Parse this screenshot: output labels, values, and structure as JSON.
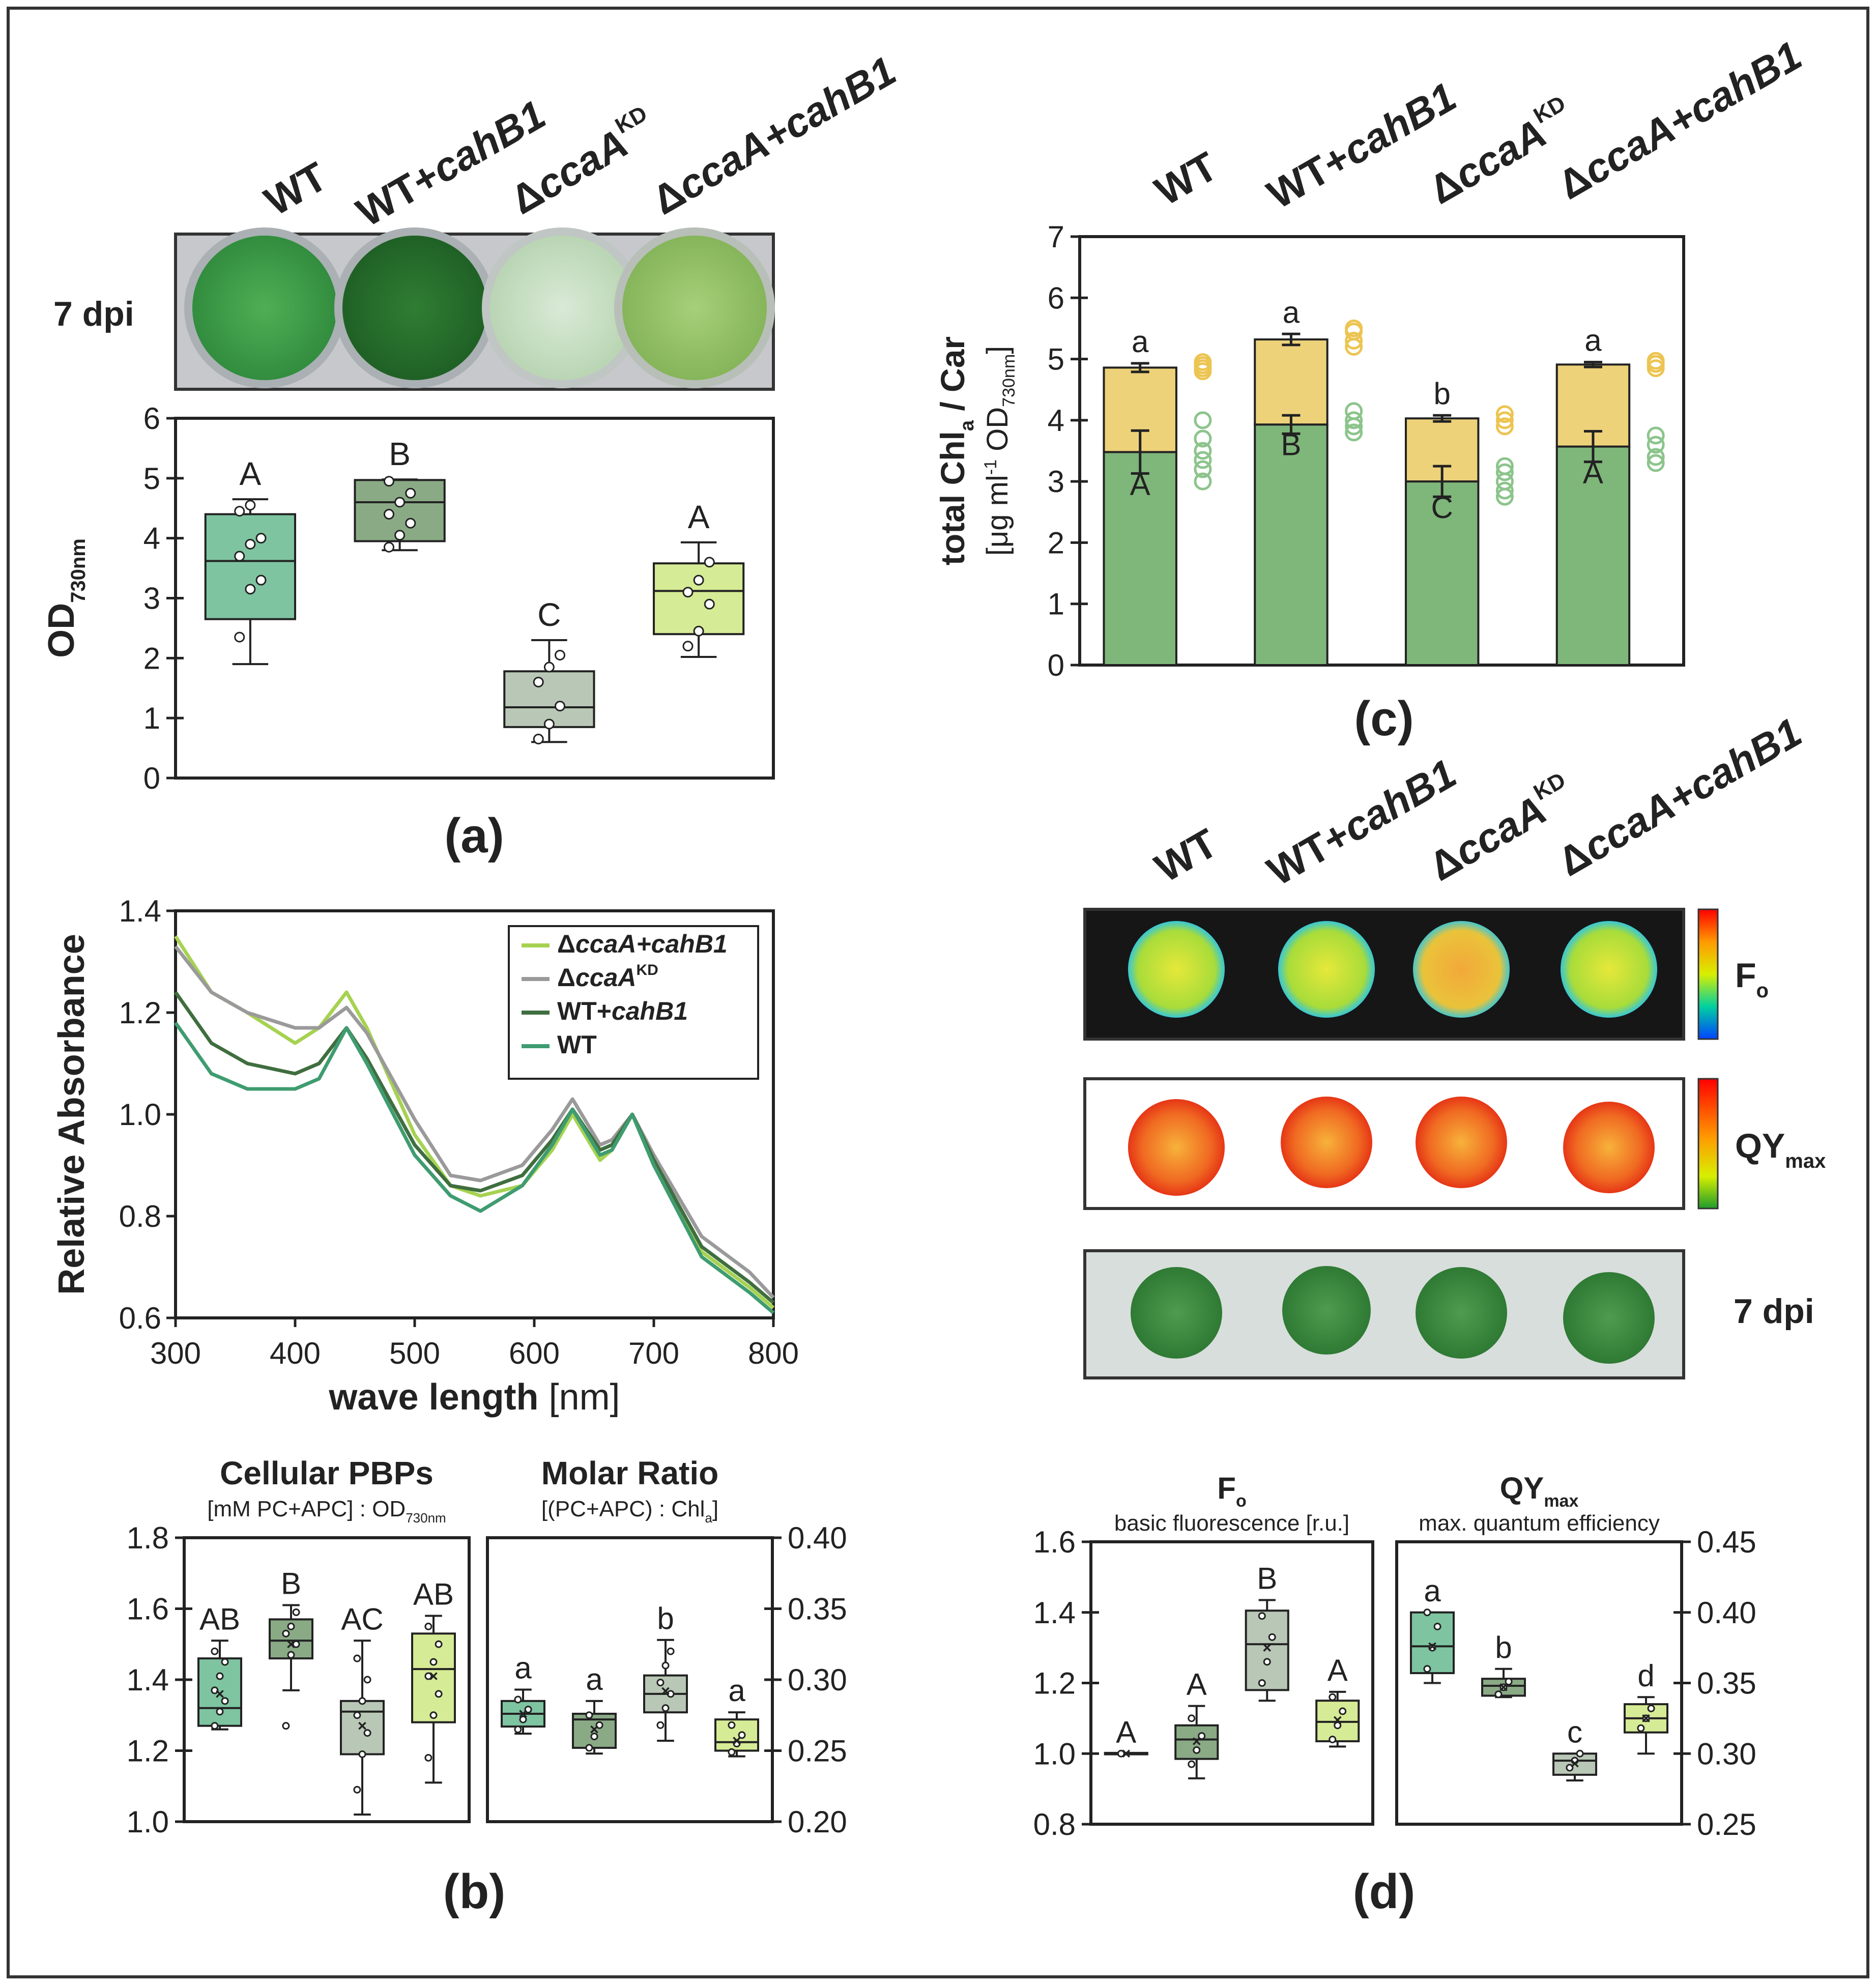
{
  "panel_labels": {
    "a": "(a)",
    "b": "(b)",
    "c": "(c)",
    "d": "(d)"
  },
  "strains": [
    {
      "pre": "WT",
      "it": ""
    },
    {
      "pre": "WT+",
      "it": "cahB1"
    },
    {
      "pre": "Δ",
      "it": "ccaA",
      "sup": "KD"
    },
    {
      "pre": "Δ",
      "it": "ccaA+cahB1"
    }
  ],
  "photo_labels": {
    "dpi_a": "7 dpi",
    "dpi_d": "7 dpi"
  },
  "imaging_labels": {
    "fo_main": "F",
    "fo_sub": "o",
    "qy_main": "QY",
    "qy_sub": "max"
  },
  "colors": {
    "wt": "#7ec4a1",
    "wt_cahB1": "#8aaa86",
    "ccaA_kd": "#b9c8b6",
    "ccaA_cahB1": "#d6eb95",
    "chl": "#7fb67a",
    "car": "#edd27a",
    "car_dot": "#ecc451",
    "chl_dot": "#8cc48b",
    "line_wt": "#3f9c70",
    "line_wt_cahB1": "#3f6e3f",
    "line_ccaA_kd": "#9a9a9a",
    "line_ccaA_cahB1": "#a6d251"
  },
  "chart_data": [
    {
      "id": "a",
      "type": "box",
      "ylabel": "OD",
      "ylabel_sub": "730nm",
      "ylim": [
        0,
        6
      ],
      "yticks": [
        0,
        1,
        2,
        3,
        4,
        5,
        6
      ],
      "ytick_labels": [
        "0",
        "1",
        "2",
        "3",
        "4",
        "5",
        "6"
      ],
      "groups": [
        {
          "name": "WT",
          "whisker": [
            1.9,
            4.65
          ],
          "box": [
            2.65,
            4.4
          ],
          "median": 3.62,
          "letter": "A",
          "points": [
            2.35,
            3.15,
            3.3,
            3.7,
            3.9,
            4.0,
            4.45,
            4.55
          ]
        },
        {
          "name": "WT+cahB1",
          "whisker": [
            3.8,
            4.98
          ],
          "box": [
            3.95,
            4.97
          ],
          "median": 4.6,
          "letter": "B",
          "points": [
            3.85,
            4.05,
            4.25,
            4.4,
            4.6,
            4.75,
            4.95
          ]
        },
        {
          "name": "ΔccaA KD",
          "whisker": [
            0.6,
            2.3
          ],
          "box": [
            0.85,
            1.78
          ],
          "median": 1.18,
          "letter": "C",
          "points": [
            0.65,
            0.9,
            1.2,
            1.6,
            1.85,
            2.05
          ]
        },
        {
          "name": "ΔccaA+cahB1",
          "whisker": [
            2.02,
            3.93
          ],
          "box": [
            2.4,
            3.58
          ],
          "median": 3.12,
          "letter": "A",
          "points": [
            2.2,
            2.45,
            2.9,
            3.1,
            3.3,
            3.6
          ]
        }
      ]
    },
    {
      "id": "b_spectrum",
      "type": "line",
      "xlabel": "wave length",
      "xlabel_unit": " [nm]",
      "ylabel": "Relative Absorbance",
      "xlim": [
        300,
        800
      ],
      "ylim": [
        0.6,
        1.4
      ],
      "xticks": [
        300,
        400,
        500,
        600,
        700,
        800
      ],
      "xtick_labels": [
        "300",
        "400",
        "500",
        "600",
        "700",
        "800"
      ],
      "yticks": [
        0.6,
        0.8,
        1.0,
        1.2,
        1.4
      ],
      "ytick_labels": [
        "0.6",
        "0.8",
        "1.0",
        "1.2",
        "1.4"
      ],
      "x": [
        300,
        330,
        360,
        400,
        420,
        443,
        460,
        500,
        530,
        555,
        590,
        615,
        632,
        655,
        665,
        682,
        700,
        740,
        780,
        800
      ],
      "series": [
        {
          "name": "ΔccaA+cahB1",
          "pre": "Δ",
          "it": "ccaA+cahB1",
          "values": [
            1.35,
            1.24,
            1.2,
            1.14,
            1.17,
            1.24,
            1.17,
            0.96,
            0.86,
            0.84,
            0.86,
            0.93,
            1.0,
            0.91,
            0.93,
            1.0,
            0.9,
            0.73,
            0.66,
            0.62
          ]
        },
        {
          "name": "ΔccaA KD",
          "pre": "Δ",
          "it": "ccaA",
          "sup": "KD",
          "values": [
            1.33,
            1.24,
            1.2,
            1.17,
            1.17,
            1.21,
            1.16,
            0.99,
            0.88,
            0.87,
            0.9,
            0.97,
            1.03,
            0.94,
            0.95,
            1.0,
            0.92,
            0.76,
            0.69,
            0.64
          ]
        },
        {
          "name": "WT+cahB1",
          "pre": "WT+",
          "it": "cahB1",
          "values": [
            1.24,
            1.14,
            1.1,
            1.08,
            1.1,
            1.17,
            1.11,
            0.94,
            0.86,
            0.85,
            0.88,
            0.95,
            1.01,
            0.93,
            0.94,
            1.0,
            0.91,
            0.74,
            0.67,
            0.63
          ]
        },
        {
          "name": "WT",
          "pre": "WT",
          "it": "",
          "values": [
            1.18,
            1.08,
            1.05,
            1.05,
            1.07,
            1.17,
            1.1,
            0.92,
            0.84,
            0.81,
            0.86,
            0.94,
            1.01,
            0.92,
            0.93,
            1.0,
            0.9,
            0.72,
            0.65,
            0.61
          ]
        }
      ]
    },
    {
      "id": "b_pbp",
      "type": "box",
      "title": "Cellular PBPs",
      "subtitle": "[mM PC+APC] : OD",
      "subtitle_sub": "730nm",
      "ylim": [
        1.0,
        1.8
      ],
      "yticks": [
        1.0,
        1.2,
        1.4,
        1.6,
        1.8
      ],
      "ytick_labels": [
        "1.0",
        "1.2",
        "1.4",
        "1.6",
        "1.8"
      ],
      "groups": [
        {
          "name": "WT",
          "whisker": [
            1.26,
            1.51
          ],
          "box": [
            1.27,
            1.46
          ],
          "median": 1.32,
          "mean": 1.36,
          "letter": "AB",
          "points": [
            1.27,
            1.31,
            1.34,
            1.37,
            1.41,
            1.45,
            1.48
          ]
        },
        {
          "name": "WT+cahB1",
          "whisker": [
            1.37,
            1.61
          ],
          "box": [
            1.46,
            1.57
          ],
          "median": 1.51,
          "mean": 1.5,
          "letter": "B",
          "points": [
            1.27,
            1.47,
            1.5,
            1.53,
            1.55,
            1.59
          ]
        },
        {
          "name": "ΔccaA KD",
          "whisker": [
            1.02,
            1.51
          ],
          "box": [
            1.19,
            1.34
          ],
          "median": 1.31,
          "mean": 1.27,
          "letter": "AC",
          "points": [
            1.09,
            1.19,
            1.25,
            1.3,
            1.34,
            1.4,
            1.46
          ]
        },
        {
          "name": "ΔccaA+cahB1",
          "whisker": [
            1.11,
            1.58
          ],
          "box": [
            1.28,
            1.53
          ],
          "median": 1.43,
          "mean": 1.41,
          "letter": "AB",
          "points": [
            1.18,
            1.3,
            1.36,
            1.41,
            1.45,
            1.5,
            1.55
          ]
        }
      ]
    },
    {
      "id": "b_ratio",
      "type": "box",
      "title": "Molar Ratio",
      "subtitle": "[(PC+APC) : Chl",
      "subtitle_sub": "a",
      "subtitle_end": "]",
      "ylim": [
        0.2,
        0.4
      ],
      "yticks": [
        0.2,
        0.25,
        0.3,
        0.35,
        0.4
      ],
      "ytick_labels": [
        "0.20",
        "0.25",
        "0.30",
        "0.35",
        "0.40"
      ],
      "groups": [
        {
          "name": "WT",
          "whisker": [
            0.262,
            0.293
          ],
          "box": [
            0.267,
            0.285
          ],
          "median": 0.276,
          "mean": 0.276,
          "letter": "a",
          "points": [
            0.265,
            0.272,
            0.279,
            0.286
          ]
        },
        {
          "name": "WT+cahB1",
          "whisker": [
            0.248,
            0.285
          ],
          "box": [
            0.252,
            0.276
          ],
          "median": 0.272,
          "mean": 0.265,
          "letter": "a",
          "points": [
            0.252,
            0.26,
            0.268,
            0.275
          ]
        },
        {
          "name": "ΔccaA KD",
          "whisker": [
            0.257,
            0.328
          ],
          "box": [
            0.277,
            0.303
          ],
          "median": 0.29,
          "mean": 0.292,
          "letter": "b",
          "points": [
            0.268,
            0.28,
            0.29,
            0.298,
            0.31,
            0.32
          ]
        },
        {
          "name": "ΔccaA+cahB1",
          "whisker": [
            0.246,
            0.277
          ],
          "box": [
            0.25,
            0.272
          ],
          "median": 0.256,
          "mean": 0.257,
          "letter": "a",
          "points": [
            0.249,
            0.255,
            0.261,
            0.268
          ]
        }
      ]
    },
    {
      "id": "c",
      "type": "bar",
      "ylabel_main": "total Chl",
      "ylabel_sub": "a",
      "ylabel_end": " / Car",
      "ylabel2": "[μg ml",
      "ylabel2_sup": "-1",
      "ylabel2_mid": " OD",
      "ylabel2_sub": "730nm",
      "ylabel2_end": "]",
      "ylim": [
        0,
        7
      ],
      "yticks": [
        0,
        1,
        2,
        3,
        4,
        5,
        6,
        7
      ],
      "ytick_labels": [
        "0",
        "1",
        "2",
        "3",
        "4",
        "5",
        "6",
        "7"
      ],
      "series": [
        {
          "name": "Chl a",
          "values": [
            3.48,
            3.93,
            3.0,
            3.57
          ]
        },
        {
          "name": "Car",
          "values": [
            1.38,
            1.39,
            1.03,
            1.34
          ]
        }
      ],
      "groups": [
        {
          "name": "WT",
          "chl": 3.48,
          "chl_err": 0.35,
          "total": 4.86,
          "total_err": 0.07,
          "upper_letter": "a",
          "lower_letter": "A",
          "car_points": [
            4.8,
            4.85,
            4.9,
            4.95
          ],
          "chl_points": [
            3.0,
            3.2,
            3.35,
            3.5,
            3.7,
            4.0
          ]
        },
        {
          "name": "WT+cahB1",
          "chl": 3.93,
          "chl_err": 0.15,
          "total": 5.32,
          "total_err": 0.09,
          "upper_letter": "a",
          "lower_letter": "B",
          "car_points": [
            5.2,
            5.3,
            5.45,
            5.5
          ],
          "chl_points": [
            3.8,
            3.9,
            4.0,
            4.15
          ]
        },
        {
          "name": "ΔccaA KD",
          "chl": 3.0,
          "chl_err": 0.25,
          "total": 4.03,
          "total_err": 0.05,
          "upper_letter": "b",
          "lower_letter": "C",
          "car_points": [
            3.9,
            4.0,
            4.1
          ],
          "chl_points": [
            2.75,
            2.85,
            3.0,
            3.15,
            3.25
          ]
        },
        {
          "name": "ΔccaA+cahB1",
          "chl": 3.57,
          "chl_err": 0.25,
          "total": 4.91,
          "total_err": 0.04,
          "upper_letter": "a",
          "lower_letter": "A",
          "car_points": [
            4.85,
            4.92,
            4.97
          ],
          "chl_points": [
            3.3,
            3.4,
            3.6,
            3.75
          ]
        }
      ]
    },
    {
      "id": "d_fo",
      "type": "box",
      "title": "F",
      "title_sub": "o",
      "subtitle": "basic fluorescence [r.u.]",
      "ylim": [
        0.8,
        1.6
      ],
      "yticks": [
        0.8,
        1.0,
        1.2,
        1.4,
        1.6
      ],
      "ytick_labels": [
        "0.8",
        "1.0",
        "1.2",
        "1.4",
        "1.6"
      ],
      "groups": [
        {
          "name": "WT",
          "whisker": [
            1.0,
            1.0
          ],
          "box": [
            0.998,
            1.002
          ],
          "median": 1.0,
          "mean": 1.0,
          "letter": "A",
          "points": [
            1.0
          ]
        },
        {
          "name": "WT+cahB1",
          "whisker": [
            0.93,
            1.135
          ],
          "box": [
            0.985,
            1.08
          ],
          "median": 1.04,
          "mean": 1.035,
          "letter": "A",
          "points": [
            0.97,
            1.01,
            1.05,
            1.1
          ]
        },
        {
          "name": "ΔccaA KD",
          "whisker": [
            1.15,
            1.435
          ],
          "box": [
            1.18,
            1.405
          ],
          "median": 1.31,
          "mean": 1.3,
          "letter": "B",
          "points": [
            1.2,
            1.26,
            1.33,
            1.39
          ]
        },
        {
          "name": "ΔccaA+cahB1",
          "whisker": [
            1.02,
            1.175
          ],
          "box": [
            1.035,
            1.15
          ],
          "median": 1.09,
          "mean": 1.095,
          "letter": "A",
          "points": [
            1.04,
            1.08,
            1.12,
            1.16
          ]
        }
      ]
    },
    {
      "id": "d_qy",
      "type": "box",
      "title": "QY",
      "title_sub": "max",
      "subtitle": "max. quantum efficiency",
      "ylim": [
        0.25,
        0.45
      ],
      "yticks": [
        0.25,
        0.3,
        0.35,
        0.4,
        0.45
      ],
      "ytick_labels": [
        "0.25",
        "0.30",
        "0.35",
        "0.40",
        "0.45"
      ],
      "groups": [
        {
          "name": "WT",
          "whisker": [
            0.35,
            0.4
          ],
          "box": [
            0.357,
            0.4
          ],
          "median": 0.376,
          "mean": 0.376,
          "letter": "a",
          "points": [
            0.36,
            0.375,
            0.39,
            0.4
          ]
        },
        {
          "name": "WT+cahB1",
          "whisker": [
            0.34,
            0.36
          ],
          "box": [
            0.341,
            0.353
          ],
          "median": 0.348,
          "mean": 0.347,
          "letter": "b",
          "points": [
            0.342,
            0.347,
            0.351
          ]
        },
        {
          "name": "ΔccaA KD",
          "whisker": [
            0.281,
            0.3
          ],
          "box": [
            0.285,
            0.3
          ],
          "median": 0.295,
          "mean": 0.293,
          "letter": "c",
          "points": [
            0.29,
            0.295,
            0.3
          ]
        },
        {
          "name": "ΔccaA+cahB1",
          "whisker": [
            0.3,
            0.34
          ],
          "box": [
            0.315,
            0.335
          ],
          "median": 0.325,
          "mean": 0.325,
          "letter": "d",
          "points": [
            0.318,
            0.325,
            0.332
          ]
        }
      ]
    }
  ]
}
